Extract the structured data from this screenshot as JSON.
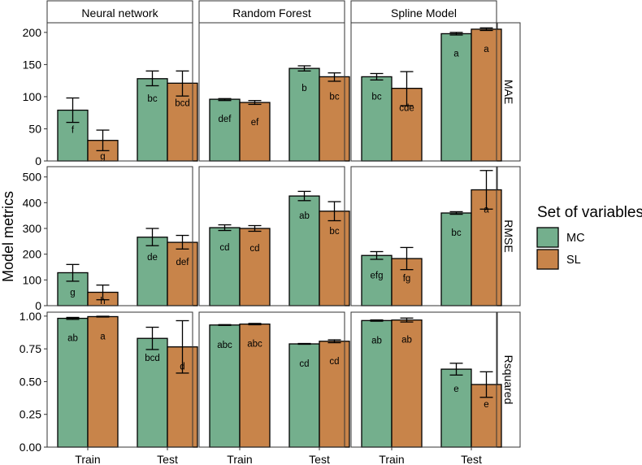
{
  "chart_data": {
    "type": "bar",
    "ylabel": "Model metrics",
    "categories": [
      "Train",
      "Test"
    ],
    "columns": [
      "Neural network",
      "Random Forest",
      "Spline Model"
    ],
    "rows": [
      {
        "name": "MAE",
        "ylim": [
          0,
          215
        ],
        "ticks": [
          0,
          50,
          100,
          150,
          200
        ],
        "tick_labels": [
          "0",
          "50",
          "100",
          "150",
          "200"
        ]
      },
      {
        "name": "RMSE",
        "ylim": [
          0,
          540
        ],
        "ticks": [
          0,
          100,
          200,
          300,
          400,
          500
        ],
        "tick_labels": [
          "0",
          "100",
          "200",
          "300",
          "400",
          "500"
        ]
      },
      {
        "name": "Rsquared",
        "ylim": [
          0,
          1.03
        ],
        "ticks": [
          0,
          0.25,
          0.5,
          0.75,
          1.0
        ],
        "tick_labels": [
          "0.00",
          "0.25",
          "0.50",
          "0.75",
          "1.00"
        ]
      }
    ],
    "legend": {
      "title": "Set of variables",
      "items": [
        {
          "name": "MC",
          "color": "#74AF8D"
        },
        {
          "name": "SL",
          "color": "#C8844A"
        }
      ]
    },
    "panels": [
      {
        "row": "MAE",
        "col": "Neural network",
        "bars": [
          {
            "category": "Train",
            "series": "MC",
            "value": 79,
            "low": 60,
            "high": 98,
            "label": "f"
          },
          {
            "category": "Train",
            "series": "SL",
            "value": 32,
            "low": 16,
            "high": 48,
            "label": "g"
          },
          {
            "category": "Test",
            "series": "MC",
            "value": 128,
            "low": 117,
            "high": 140,
            "label": "bc"
          },
          {
            "category": "Test",
            "series": "SL",
            "value": 121,
            "low": 101,
            "high": 140,
            "label": "bcd"
          }
        ]
      },
      {
        "row": "MAE",
        "col": "Random Forest",
        "bars": [
          {
            "category": "Train",
            "series": "MC",
            "value": 96,
            "low": 94,
            "high": 97,
            "label": "def"
          },
          {
            "category": "Train",
            "series": "SL",
            "value": 91,
            "low": 88,
            "high": 94,
            "label": "ef"
          },
          {
            "category": "Test",
            "series": "MC",
            "value": 144,
            "low": 140,
            "high": 148,
            "label": "b"
          },
          {
            "category": "Test",
            "series": "SL",
            "value": 131,
            "low": 124,
            "high": 137,
            "label": "bc"
          }
        ]
      },
      {
        "row": "MAE",
        "col": "Spline Model",
        "bars": [
          {
            "category": "Train",
            "series": "MC",
            "value": 131,
            "low": 126,
            "high": 136,
            "label": "bc"
          },
          {
            "category": "Train",
            "series": "SL",
            "value": 113,
            "low": 86,
            "high": 139,
            "label": "cde"
          },
          {
            "category": "Test",
            "series": "MC",
            "value": 198,
            "low": 196,
            "high": 200,
            "label": "a"
          },
          {
            "category": "Test",
            "series": "SL",
            "value": 205,
            "low": 203,
            "high": 207,
            "label": "a"
          }
        ]
      },
      {
        "row": "RMSE",
        "col": "Neural network",
        "bars": [
          {
            "category": "Train",
            "series": "MC",
            "value": 128,
            "low": 95,
            "high": 160,
            "label": "g"
          },
          {
            "category": "Train",
            "series": "SL",
            "value": 52,
            "low": 23,
            "high": 80,
            "label": "h"
          },
          {
            "category": "Test",
            "series": "MC",
            "value": 266,
            "low": 233,
            "high": 300,
            "label": "de"
          },
          {
            "category": "Test",
            "series": "SL",
            "value": 246,
            "low": 220,
            "high": 273,
            "label": "def"
          }
        ]
      },
      {
        "row": "RMSE",
        "col": "Random Forest",
        "bars": [
          {
            "category": "Train",
            "series": "MC",
            "value": 303,
            "low": 292,
            "high": 314,
            "label": "cd"
          },
          {
            "category": "Train",
            "series": "SL",
            "value": 300,
            "low": 289,
            "high": 311,
            "label": "cd"
          },
          {
            "category": "Test",
            "series": "MC",
            "value": 426,
            "low": 408,
            "high": 444,
            "label": "ab"
          },
          {
            "category": "Test",
            "series": "SL",
            "value": 367,
            "low": 330,
            "high": 404,
            "label": "bc"
          }
        ]
      },
      {
        "row": "RMSE",
        "col": "Spline Model",
        "bars": [
          {
            "category": "Train",
            "series": "MC",
            "value": 195,
            "low": 180,
            "high": 210,
            "label": "efg"
          },
          {
            "category": "Train",
            "series": "SL",
            "value": 183,
            "low": 140,
            "high": 226,
            "label": "fg"
          },
          {
            "category": "Test",
            "series": "MC",
            "value": 360,
            "low": 355,
            "high": 365,
            "label": "bc"
          },
          {
            "category": "Test",
            "series": "SL",
            "value": 450,
            "low": 375,
            "high": 525,
            "label": "a"
          }
        ]
      },
      {
        "row": "Rsquared",
        "col": "Neural network",
        "bars": [
          {
            "category": "Train",
            "series": "MC",
            "value": 0.983,
            "low": 0.975,
            "high": 0.99,
            "label": "ab"
          },
          {
            "category": "Train",
            "series": "SL",
            "value": 0.996,
            "low": 0.993,
            "high": 0.999,
            "label": "a"
          },
          {
            "category": "Test",
            "series": "MC",
            "value": 0.83,
            "low": 0.745,
            "high": 0.915,
            "label": "bcd"
          },
          {
            "category": "Test",
            "series": "SL",
            "value": 0.765,
            "low": 0.565,
            "high": 0.965,
            "label": "d"
          }
        ]
      },
      {
        "row": "Rsquared",
        "col": "Random Forest",
        "bars": [
          {
            "category": "Train",
            "series": "MC",
            "value": 0.932,
            "low": 0.929,
            "high": 0.935,
            "label": "abc"
          },
          {
            "category": "Train",
            "series": "SL",
            "value": 0.939,
            "low": 0.934,
            "high": 0.944,
            "label": "abc"
          },
          {
            "category": "Test",
            "series": "MC",
            "value": 0.788,
            "low": 0.785,
            "high": 0.791,
            "label": "cd"
          },
          {
            "category": "Test",
            "series": "SL",
            "value": 0.808,
            "low": 0.797,
            "high": 0.819,
            "label": "cd"
          }
        ]
      },
      {
        "row": "Rsquared",
        "col": "Spline Model",
        "bars": [
          {
            "category": "Train",
            "series": "MC",
            "value": 0.966,
            "low": 0.961,
            "high": 0.971,
            "label": "ab"
          },
          {
            "category": "Train",
            "series": "SL",
            "value": 0.97,
            "low": 0.955,
            "high": 0.985,
            "label": "ab"
          },
          {
            "category": "Test",
            "series": "MC",
            "value": 0.595,
            "low": 0.55,
            "high": 0.64,
            "label": "e"
          },
          {
            "category": "Test",
            "series": "SL",
            "value": 0.478,
            "low": 0.38,
            "high": 0.575,
            "label": "e"
          }
        ]
      }
    ]
  }
}
